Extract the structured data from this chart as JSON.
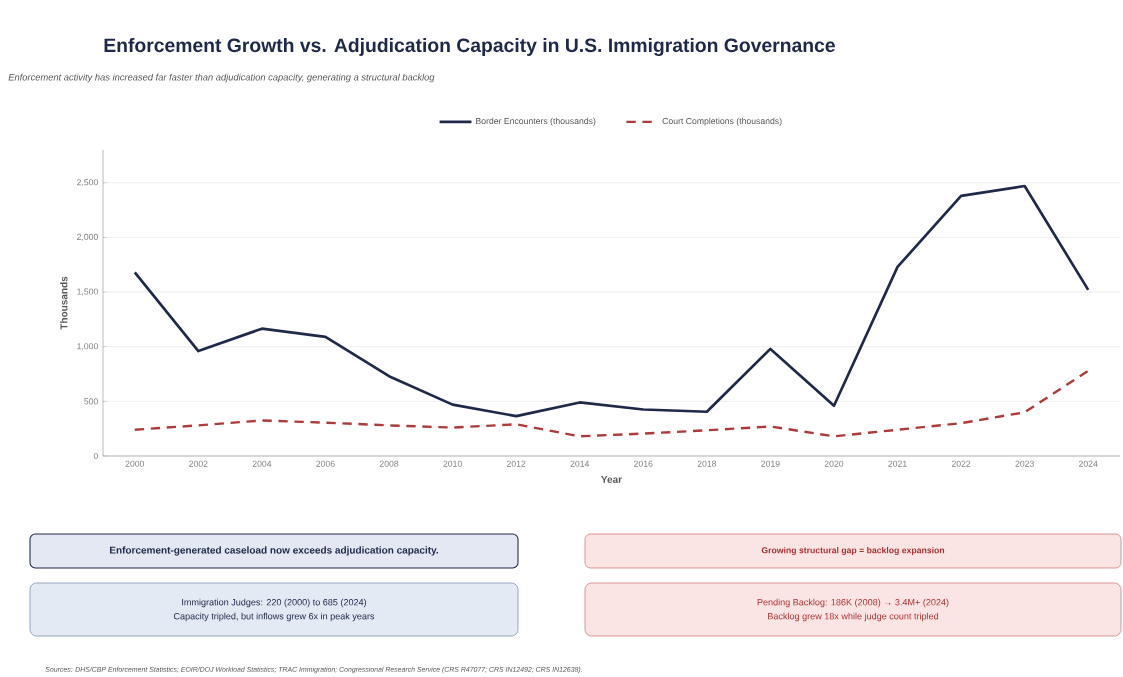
{
  "chart_data": {
    "type": "line",
    "title": "Enforcement Growth vs. Adjudication Capacity in U.S. Immigration Governance",
    "subtitle": "Enforcement activity has increased far faster than adjudication capacity, generating a structural backlog",
    "xlabel": "Year",
    "ylabel": "Thousands",
    "categories": [
      "2000",
      "2002",
      "2004",
      "2006",
      "2008",
      "2010",
      "2012",
      "2014",
      "2016",
      "2018",
      "2019",
      "2020",
      "2021",
      "2022",
      "2023",
      "2024"
    ],
    "series": [
      {
        "name": "Border Encounters (thousands)",
        "color": "#1f2a4a",
        "line_style": "solid",
        "values": [
          1680,
          960,
          1165,
          1090,
          730,
          470,
          365,
          490,
          425,
          405,
          980,
          460,
          1730,
          2380,
          2470,
          1520
        ]
      },
      {
        "name": "Court Completions (thousands)",
        "color": "#b03a3a",
        "line_style": "dashed",
        "values": [
          240,
          280,
          325,
          305,
          280,
          260,
          290,
          180,
          205,
          235,
          270,
          180,
          240,
          300,
          400,
          780
        ]
      }
    ],
    "ylim": [
      0,
      2800
    ],
    "yticks": [
      0,
      500,
      {
        "value": 1000,
        "label": "1,000"
      },
      {
        "value": 1500,
        "label": "1,500"
      },
      {
        "value": 2000,
        "label": "2,000"
      },
      {
        "value": 2500,
        "label": "2,500"
      }
    ],
    "grid": "y",
    "legend": "top",
    "annotations": [
      "Enforcement-generated caseload now exceeds adjudication capacity.",
      "Growing structural gap = backlog expansion",
      "Immigration Judges: 220 (2000) to 685 (2024)",
      "Capacity tripled, but inflows grew 6x in peak years",
      "Pending Backlog: 186K (2008) → 3.4M+ (2024)",
      "Backlog grew 18x while judge count tripled",
      "Sources: DHS/CBP Enforcement Statistics; EOIR/DOJ Workload Statistics; TRAC Immigration; Congressional Research Service (CRS R47077; CRS IN12492; CRS IN12638)."
    ]
  }
}
